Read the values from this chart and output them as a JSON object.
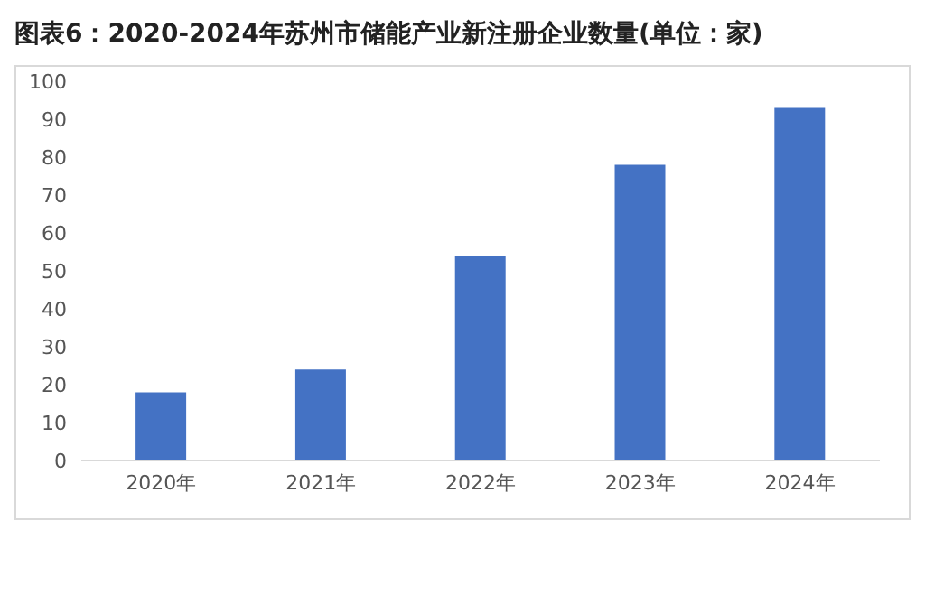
{
  "chart_data": {
    "type": "bar",
    "title": "图表6：2020-2024年苏州市储能产业新注册企业数量(单位：家)",
    "categories": [
      "2020年",
      "2021年",
      "2022年",
      "2023年",
      "2024年"
    ],
    "values": [
      18,
      24,
      54,
      78,
      93
    ],
    "color": "#4472c4",
    "ylim": [
      0,
      100
    ],
    "yticks": [
      0,
      10,
      20,
      30,
      40,
      50,
      60,
      70,
      80,
      90,
      100
    ],
    "grid": false
  }
}
